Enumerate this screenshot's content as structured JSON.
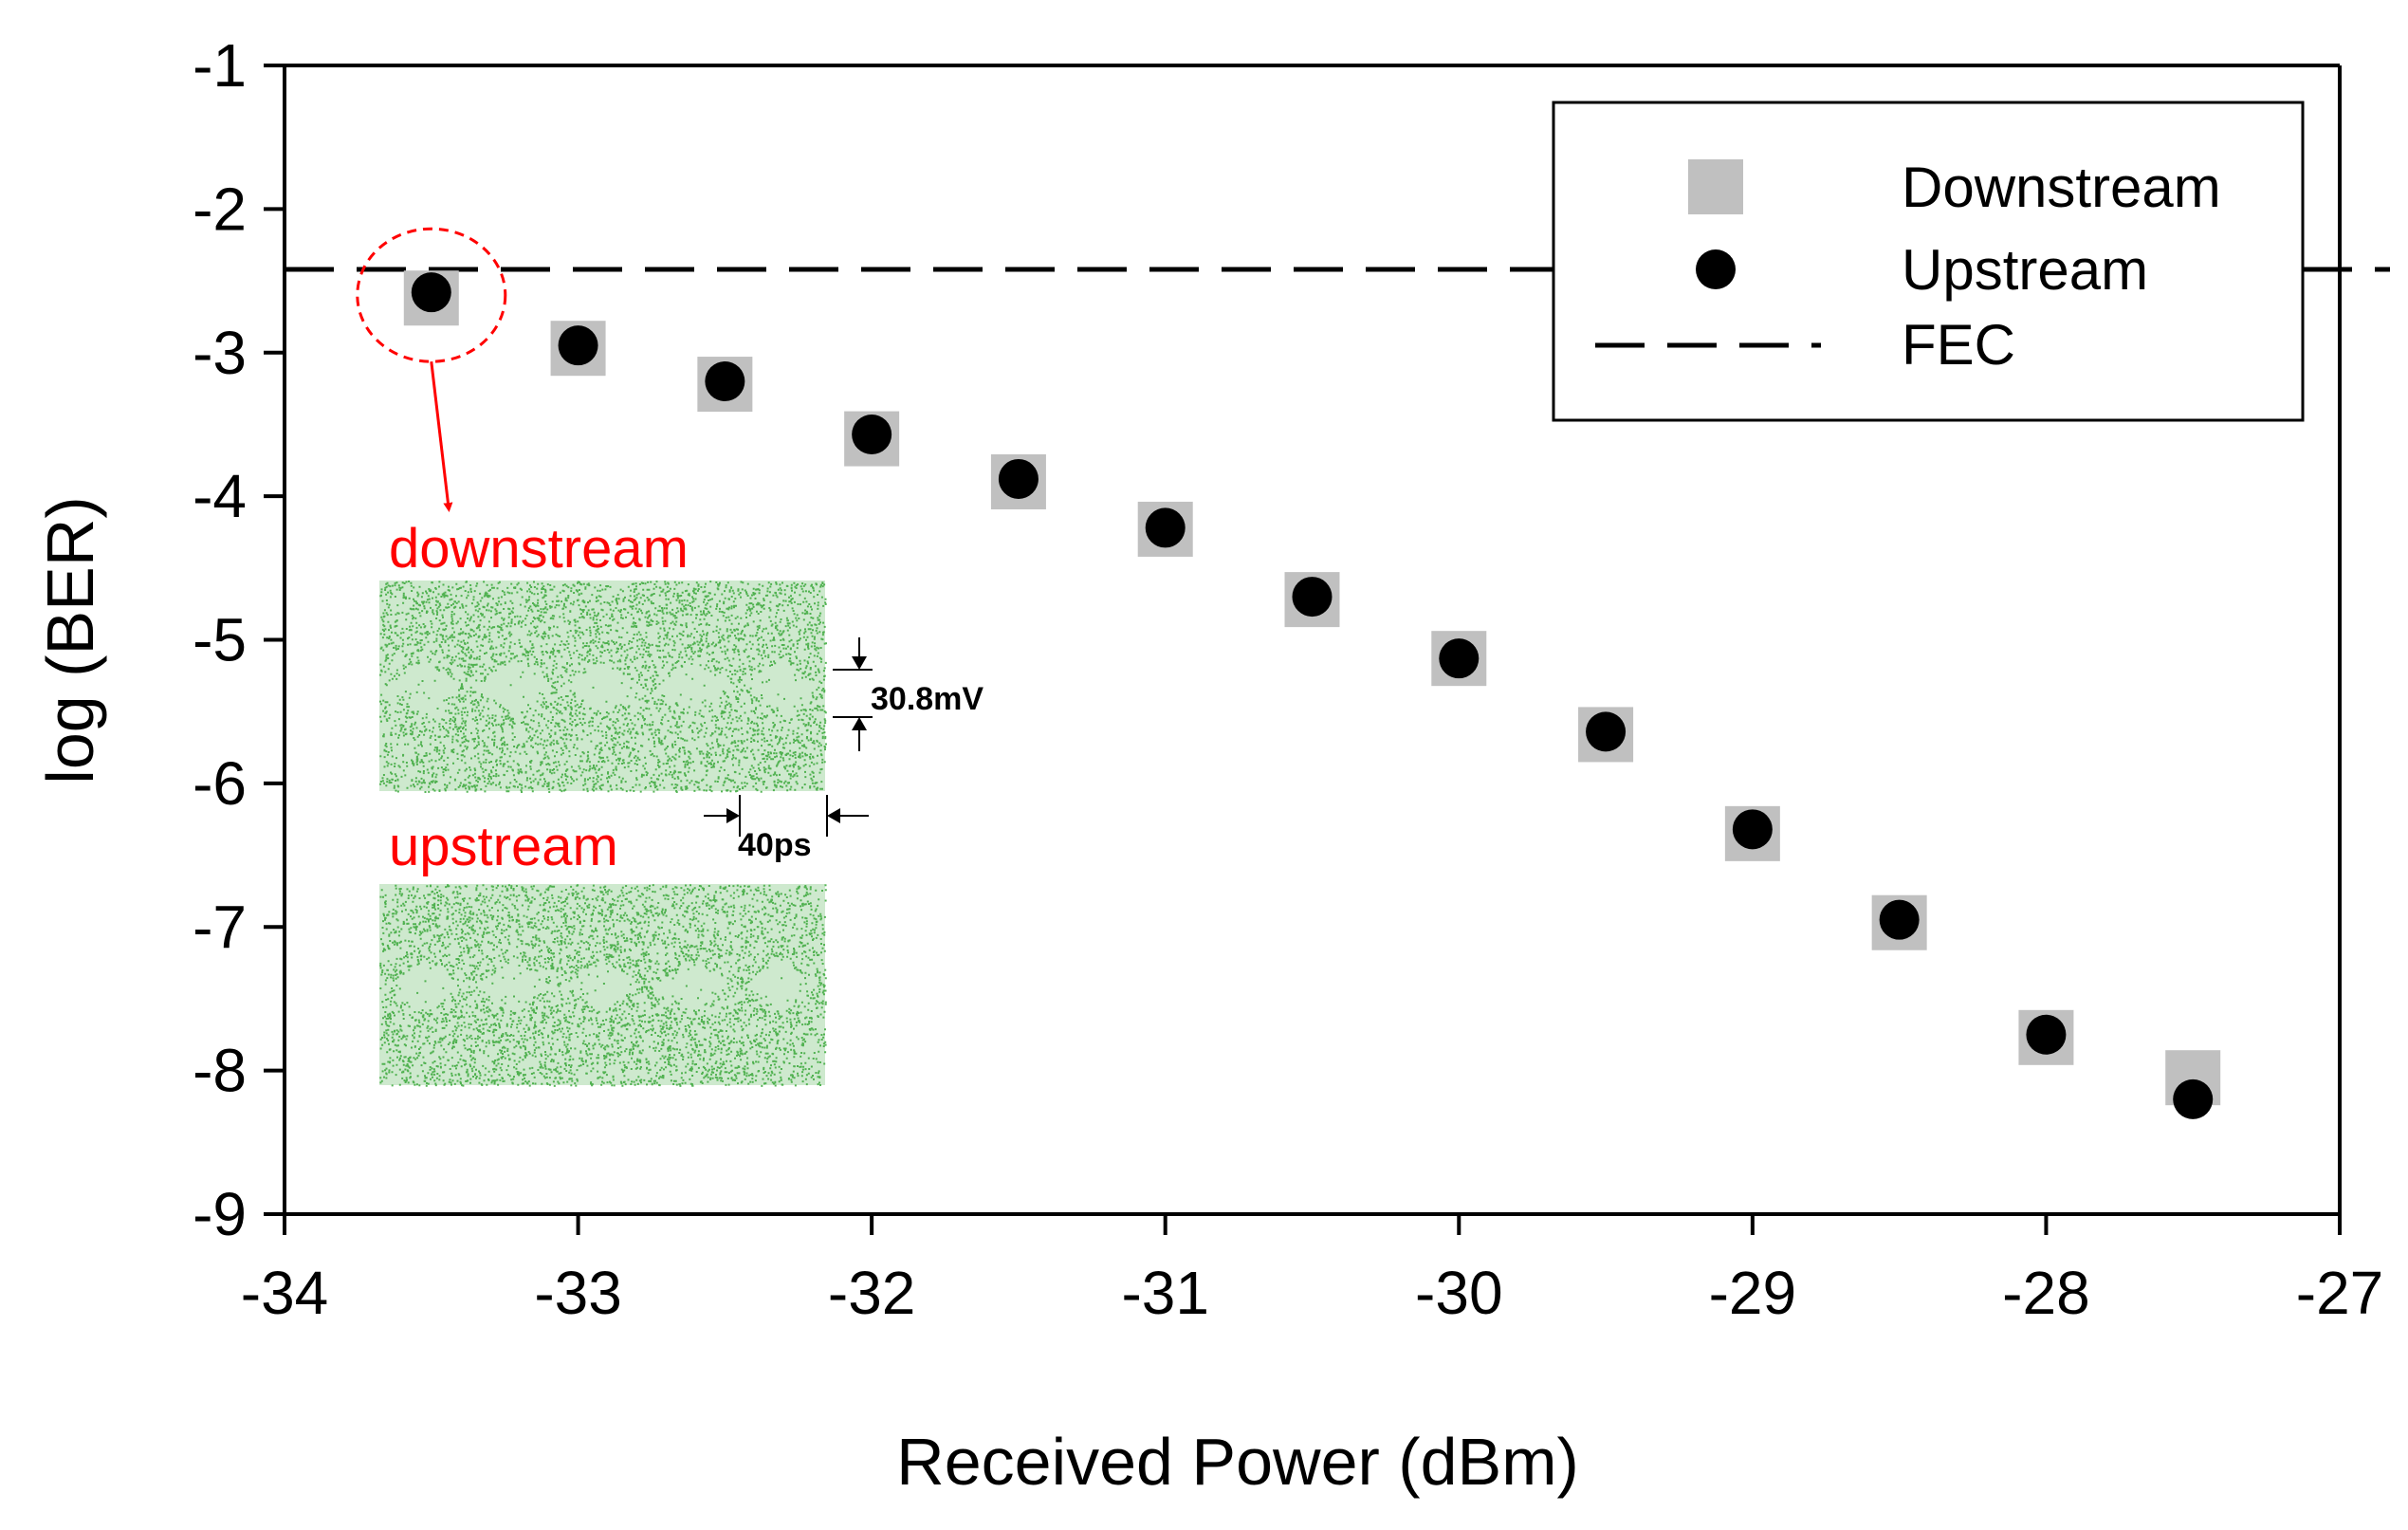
{
  "chart_data": {
    "type": "scatter",
    "xlabel": "Received Power (dBm)",
    "ylabel": "log (BER)",
    "xlim": [
      -34,
      -27
    ],
    "ylim": [
      -9,
      -1
    ],
    "x_ticks": [
      -34,
      -33,
      -32,
      -31,
      -30,
      -29,
      -28,
      -27
    ],
    "y_ticks": [
      -1,
      -2,
      -3,
      -4,
      -5,
      -6,
      -7,
      -8,
      -9
    ],
    "x_tick_labels": [
      "-34",
      "-33",
      "-32",
      "-31",
      "-30",
      "-29",
      "-28",
      "-27"
    ],
    "y_tick_labels": [
      "-1",
      "-2",
      "-3",
      "-4",
      "-5",
      "-6",
      "-7",
      "-8",
      "-9"
    ],
    "grid": false,
    "legend_position": "top-right",
    "series": [
      {
        "name": "Downstream",
        "marker": "square",
        "color": "#c0c0c0",
        "x": [
          -33.5,
          -33,
          -32.5,
          -32,
          -31.5,
          -31,
          -30.5,
          -30,
          -29.5,
          -29,
          -28.5,
          -28,
          -27.5
        ],
        "y": [
          -2.62,
          -2.97,
          -3.22,
          -3.6,
          -3.9,
          -4.23,
          -4.72,
          -5.13,
          -5.66,
          -6.35,
          -6.97,
          -7.77,
          -8.05
        ]
      },
      {
        "name": "Upstream",
        "marker": "circle",
        "color": "#000000",
        "x": [
          -33.5,
          -33,
          -32.5,
          -32,
          -31.5,
          -31,
          -30.5,
          -30,
          -29.5,
          -29,
          -28.5,
          -28,
          -27.5
        ],
        "y": [
          -2.58,
          -2.95,
          -3.2,
          -3.57,
          -3.88,
          -4.22,
          -4.7,
          -5.13,
          -5.64,
          -6.32,
          -6.95,
          -7.75,
          -8.2
        ]
      }
    ],
    "reference_lines": [
      {
        "name": "FEC",
        "type": "horizontal",
        "y": -2.42,
        "style": "dashed",
        "color": "#000000"
      }
    ],
    "annotations": {
      "highlight_point": {
        "x": -33.5,
        "y": -2.6,
        "color": "#ff0000"
      },
      "inset_downstream_label": "downstream",
      "inset_upstream_label": "upstream",
      "eye_amplitude_label": "30.8mV",
      "eye_time_label": "40ps"
    }
  },
  "colors": {
    "accent": "#ff0000",
    "eye_green": "#3aa83a",
    "eye_bg": "#ffffff"
  }
}
